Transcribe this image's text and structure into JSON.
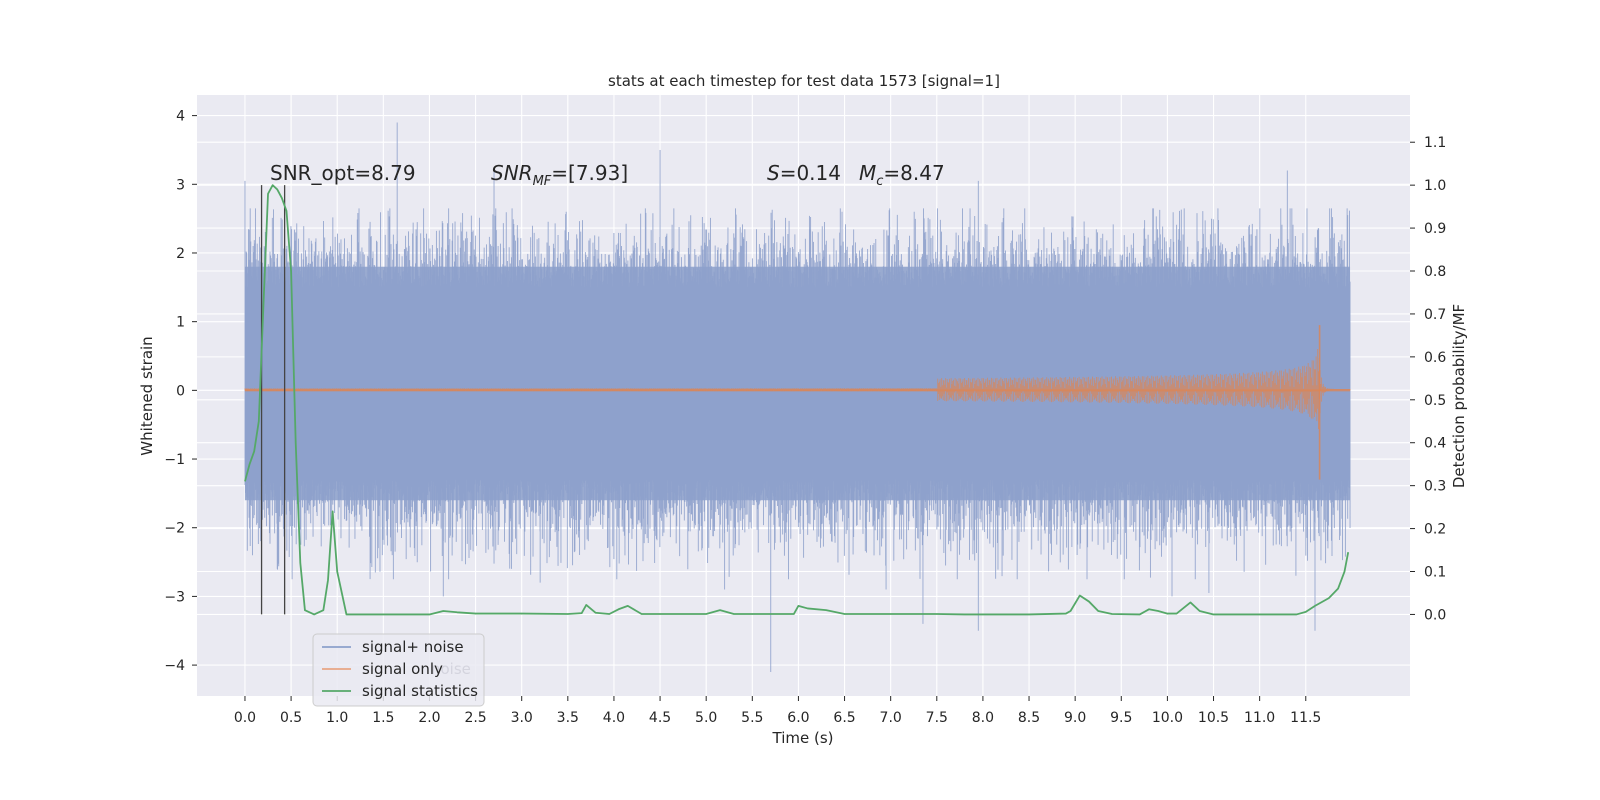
{
  "chart_data": {
    "type": "line",
    "title": "stats at each timestep for test data 1573 [signal=1]",
    "xlabel": "Time (s)",
    "ylabel": "Whitened strain",
    "y2label": "Detection probability/MF",
    "xlim": [
      -0.52,
      12.63
    ],
    "ylim": [
      -4.45,
      4.3
    ],
    "y2lim": [
      -0.19,
      1.21
    ],
    "xticks": [
      0.0,
      0.5,
      1.0,
      1.5,
      2.0,
      2.5,
      3.0,
      3.5,
      4.0,
      4.5,
      5.0,
      5.5,
      6.0,
      6.5,
      7.0,
      7.5,
      8.0,
      8.5,
      9.0,
      9.5,
      10.0,
      10.5,
      11.0,
      11.5
    ],
    "xtick_labels": [
      "0.0",
      "0.5",
      "1.0",
      "1.5",
      "2.0",
      "2.5",
      "3.0",
      "3.5",
      "4.0",
      "4.5",
      "5.0",
      "5.5",
      "6.0",
      "6.5",
      "7.0",
      "7.5",
      "8.0",
      "8.5",
      "9.0",
      "9.5",
      "10.0",
      "10.5",
      "11.0",
      "11.5"
    ],
    "yticks": [
      4,
      3,
      2,
      1,
      0,
      -1,
      -2,
      -3,
      -4
    ],
    "ytick_labels": [
      "4",
      "3",
      "2",
      "1",
      "0",
      "−1",
      "−2",
      "−3",
      "−4"
    ],
    "y2ticks": [
      1.1,
      1.0,
      0.9,
      0.8,
      0.7,
      0.6,
      0.5,
      0.4,
      0.3,
      0.2,
      0.1,
      0.0
    ],
    "y2tick_labels": [
      "1.1",
      "1.0",
      "0.9",
      "0.8",
      "0.7",
      "0.6",
      "0.5",
      "0.4",
      "0.3",
      "0.2",
      "0.1",
      "0.0"
    ],
    "grid": true,
    "legend_position": "lower-left",
    "colors": {
      "background": "#eaeaf2",
      "grid": "#ffffff",
      "noise": "#8da0cb",
      "signal": "#dd8452",
      "stats": "#55a868",
      "vlines": "#444444"
    },
    "annotations": [
      {
        "id": "snr_opt",
        "text": "SNR_opt=8.79",
        "x": 0.2,
        "y2": 1.0
      },
      {
        "id": "snr_mf",
        "text": "SNR",
        "sub": "MF",
        "rest": "=[7.93]",
        "x": 2.6,
        "y2": 1.0
      },
      {
        "id": "s_val",
        "text": "S",
        "rest": "=0.14",
        "x": 5.6,
        "y2": 1.0
      },
      {
        "id": "mc_val",
        "text": "M",
        "sub": "c",
        "rest": "=8.47",
        "x": 6.6,
        "y2": 1.0
      }
    ],
    "vlines": [
      {
        "x": 0.18,
        "y2_range": [
          0.0,
          1.0
        ]
      },
      {
        "x": 0.43,
        "y2_range": [
          0.0,
          1.0
        ]
      }
    ],
    "series": [
      {
        "name": "signal+ noise",
        "kind": "noise_band",
        "x_range": [
          0.0,
          11.98
        ],
        "envelope": [
          -1.6,
          1.8
        ],
        "extremes": [
          [
            0.0,
            3.05
          ],
          [
            0.35,
            -2.6
          ],
          [
            0.55,
            2.3
          ],
          [
            1.65,
            3.9
          ],
          [
            2.7,
            3.2
          ],
          [
            2.15,
            -3.0
          ],
          [
            3.2,
            -2.8
          ],
          [
            4.5,
            3.5
          ],
          [
            5.2,
            -2.9
          ],
          [
            5.7,
            -4.1
          ],
          [
            6.95,
            -2.9
          ],
          [
            7.35,
            -3.4
          ],
          [
            7.95,
            -3.5
          ],
          [
            7.95,
            3.05
          ],
          [
            10.05,
            -3.0
          ],
          [
            10.45,
            -2.95
          ],
          [
            11.3,
            3.2
          ],
          [
            11.6,
            -3.5
          ],
          [
            11.95,
            2.5
          ]
        ]
      },
      {
        "name": "signal only",
        "kind": "chirp",
        "x_range": [
          0.0,
          11.98
        ],
        "visible_from": 7.5,
        "merger_time": 11.65,
        "peak_amplitude": 0.95,
        "peak_min": -1.3
      },
      {
        "name": "signal statistics",
        "kind": "line",
        "axis": "y2",
        "points": [
          [
            0.0,
            0.31
          ],
          [
            0.05,
            0.35
          ],
          [
            0.1,
            0.38
          ],
          [
            0.15,
            0.45
          ],
          [
            0.2,
            0.72
          ],
          [
            0.25,
            0.98
          ],
          [
            0.3,
            1.0
          ],
          [
            0.35,
            0.99
          ],
          [
            0.4,
            0.97
          ],
          [
            0.45,
            0.94
          ],
          [
            0.5,
            0.8
          ],
          [
            0.55,
            0.4
          ],
          [
            0.6,
            0.12
          ],
          [
            0.65,
            0.01
          ],
          [
            0.75,
            0.0
          ],
          [
            0.85,
            0.01
          ],
          [
            0.9,
            0.08
          ],
          [
            0.95,
            0.24
          ],
          [
            1.0,
            0.1
          ],
          [
            1.05,
            0.05
          ],
          [
            1.1,
            0.0
          ],
          [
            1.5,
            0.0
          ],
          [
            2.0,
            0.0
          ],
          [
            2.15,
            0.008
          ],
          [
            2.3,
            0.005
          ],
          [
            2.5,
            0.002
          ],
          [
            3.0,
            0.002
          ],
          [
            3.5,
            0.001
          ],
          [
            3.65,
            0.003
          ],
          [
            3.7,
            0.022
          ],
          [
            3.8,
            0.004
          ],
          [
            3.95,
            0.001
          ],
          [
            4.05,
            0.012
          ],
          [
            4.15,
            0.02
          ],
          [
            4.3,
            0.001
          ],
          [
            5.0,
            0.001
          ],
          [
            5.15,
            0.01
          ],
          [
            5.3,
            0.001
          ],
          [
            5.95,
            0.001
          ],
          [
            6.0,
            0.02
          ],
          [
            6.1,
            0.014
          ],
          [
            6.3,
            0.01
          ],
          [
            6.5,
            0.001
          ],
          [
            7.0,
            0.001
          ],
          [
            7.5,
            0.001
          ],
          [
            7.8,
            0.0
          ],
          [
            8.5,
            0.0
          ],
          [
            8.9,
            0.002
          ],
          [
            8.95,
            0.008
          ],
          [
            9.05,
            0.044
          ],
          [
            9.15,
            0.03
          ],
          [
            9.25,
            0.008
          ],
          [
            9.4,
            0.001
          ],
          [
            9.7,
            0.0
          ],
          [
            9.8,
            0.012
          ],
          [
            9.9,
            0.008
          ],
          [
            10.0,
            0.002
          ],
          [
            10.1,
            0.002
          ],
          [
            10.25,
            0.028
          ],
          [
            10.35,
            0.008
          ],
          [
            10.5,
            0.0
          ],
          [
            11.4,
            0.0
          ],
          [
            11.5,
            0.006
          ],
          [
            11.6,
            0.02
          ],
          [
            11.75,
            0.038
          ],
          [
            11.85,
            0.06
          ],
          [
            11.92,
            0.1
          ],
          [
            11.96,
            0.145
          ]
        ]
      }
    ],
    "legend": [
      "signal+ noise",
      "signal only",
      "signal statistics"
    ],
    "legend_ghost_text": "noise"
  }
}
